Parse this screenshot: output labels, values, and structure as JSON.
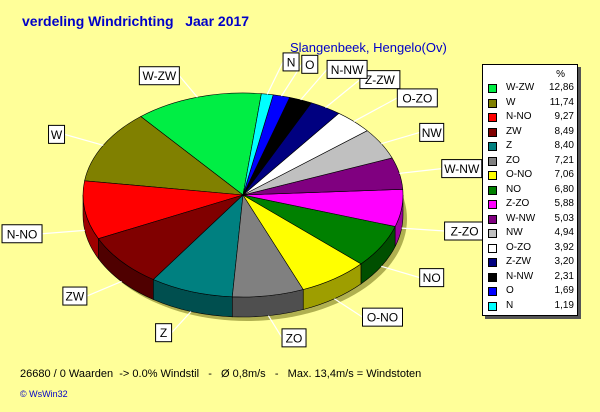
{
  "title": "verdeling Windrichting   Jaar 2017",
  "subtitle": "Slangenbeek, Hengelo(Ov)",
  "stats_line": "26680 / 0 Waarden  -> 0.0% Windstil   -   Ø 0,8m/s   -   Max. 13,4m/s = Windstoten",
  "watermark": "© WsWin32",
  "legend_header": "%",
  "chart_data": {
    "type": "pie",
    "title": "verdeling Windrichting   Jaar 2017",
    "subtitle": "Slangenbeek, Hengelo(Ov)",
    "legend_placement": "right",
    "slices": [
      {
        "label": "W-ZW",
        "value": "12,86",
        "num": 12.86,
        "color": "#00ee44"
      },
      {
        "label": "W",
        "value": "11,74",
        "num": 11.74,
        "color": "#808000"
      },
      {
        "label": "N-NO",
        "value": "9,27",
        "num": 9.27,
        "color": "#ff0000"
      },
      {
        "label": "ZW",
        "value": "8,49",
        "num": 8.49,
        "color": "#800000"
      },
      {
        "label": "Z",
        "value": "8,40",
        "num": 8.4,
        "color": "#008080"
      },
      {
        "label": "ZO",
        "value": "7,21",
        "num": 7.21,
        "color": "#808080"
      },
      {
        "label": "O-NO",
        "value": "7,06",
        "num": 7.06,
        "color": "#ffff00"
      },
      {
        "label": "NO",
        "value": "6,80",
        "num": 6.8,
        "color": "#008000"
      },
      {
        "label": "Z-ZO",
        "value": "5,88",
        "num": 5.88,
        "color": "#ff00ff"
      },
      {
        "label": "W-NW",
        "value": "5,03",
        "num": 5.03,
        "color": "#800080"
      },
      {
        "label": "NW",
        "value": "4,94",
        "num": 4.94,
        "color": "#c0c0c0"
      },
      {
        "label": "O-ZO",
        "value": "3,92",
        "num": 3.92,
        "color": "#ffffff"
      },
      {
        "label": "Z-ZW",
        "value": "3,20",
        "num": 3.2,
        "color": "#000080"
      },
      {
        "label": "N-NW",
        "value": "2,31",
        "num": 2.31,
        "color": "#000000"
      },
      {
        "label": "O",
        "value": "1,69",
        "num": 1.69,
        "color": "#0000ff"
      },
      {
        "label": "N",
        "value": "1,19",
        "num": 1.19,
        "color": "#00ffff"
      }
    ]
  }
}
